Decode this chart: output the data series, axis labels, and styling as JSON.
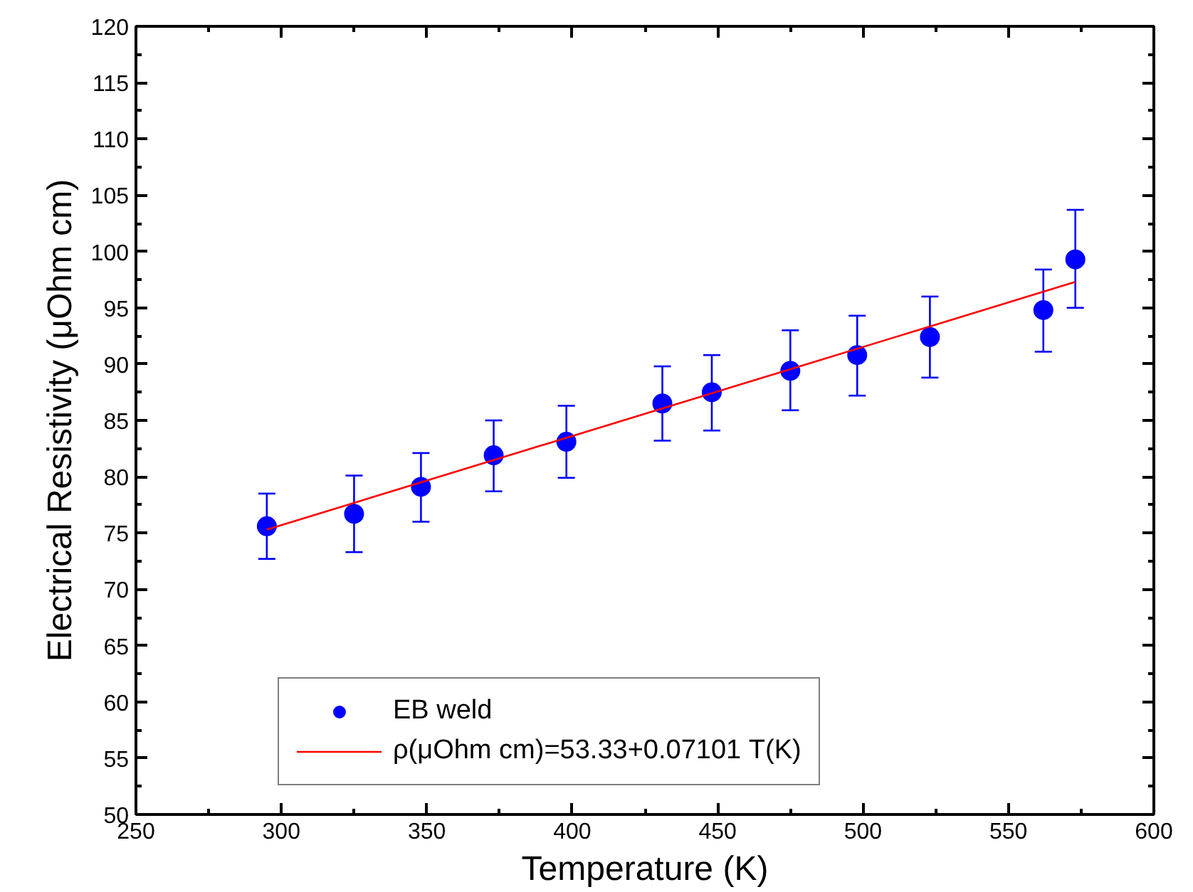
{
  "chart_data": {
    "type": "scatter",
    "xlabel": "Temperature (K)",
    "ylabel": "Electrical Resistivity (μOhm cm)",
    "x": [
      295,
      325,
      348,
      373,
      398,
      431,
      448,
      475,
      498,
      523,
      562,
      573
    ],
    "series": [
      {
        "name": "EB weld",
        "color": "#0000ff",
        "marker": "circle",
        "values": [
          75.6,
          76.7,
          79.1,
          81.9,
          83.1,
          86.5,
          87.5,
          89.4,
          90.8,
          92.4,
          94.8,
          99.3
        ],
        "errors": [
          [
            72.7,
            78.5
          ],
          [
            73.3,
            80.1
          ],
          [
            76.0,
            82.1
          ],
          [
            78.7,
            85.0
          ],
          [
            79.9,
            86.3
          ],
          [
            83.2,
            89.8
          ],
          [
            84.1,
            90.8
          ],
          [
            85.9,
            93.0
          ],
          [
            87.2,
            94.3
          ],
          [
            88.8,
            96.0
          ],
          [
            91.1,
            98.4
          ],
          [
            95.0,
            103.7
          ]
        ]
      },
      {
        "name": "ρ(μOhm cm)=53.33+0.07101 T(K)",
        "type": "line",
        "color": "#ff0000",
        "line_style": "solid",
        "marker": "none",
        "x": [
          295,
          573
        ],
        "values": [
          75.3,
          97.3
        ]
      }
    ],
    "xlim": [
      250,
      600
    ],
    "xticks": [
      250,
      300,
      350,
      400,
      450,
      500,
      550,
      600
    ],
    "ylim": [
      50,
      120
    ],
    "yticks": [
      50,
      55,
      60,
      65,
      70,
      75,
      80,
      85,
      90,
      95,
      100,
      105,
      110,
      115,
      120
    ],
    "grid": false,
    "legend": "bottom"
  }
}
